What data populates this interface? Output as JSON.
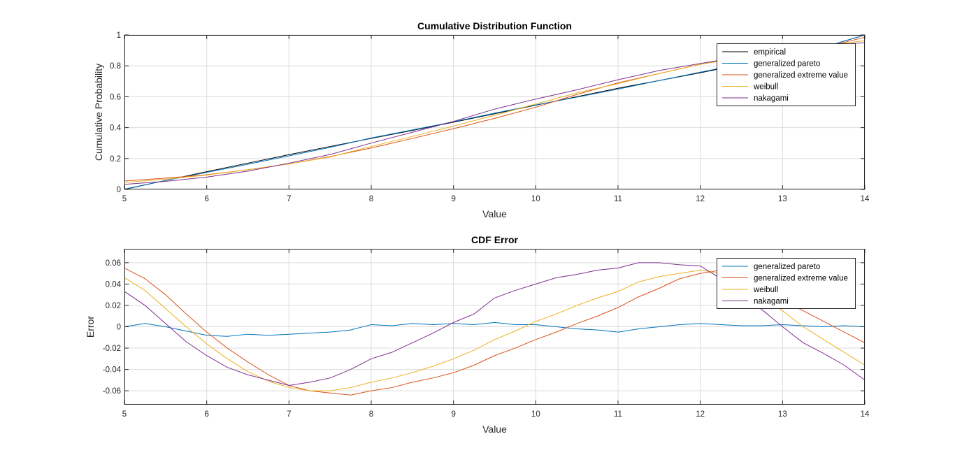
{
  "colors": {
    "empirical": "#000000",
    "generalized pareto": "#0072bd",
    "generalized extreme value": "#d95319",
    "weibull": "#edb120",
    "nakagami": "#7e2f8e"
  },
  "chart_data": [
    {
      "type": "line",
      "title": "Cumulative Distribution Function",
      "xlabel": "Value",
      "ylabel": "Cumulative Probability",
      "xlim": [
        5,
        14
      ],
      "ylim": [
        0,
        1
      ],
      "xticks": [
        5,
        6,
        7,
        8,
        9,
        10,
        11,
        12,
        13,
        14
      ],
      "xtick_labels": [
        "5",
        "6",
        "7",
        "8",
        "9",
        "10",
        "11",
        "12",
        "13",
        "14"
      ],
      "yticks": [
        0,
        0.2,
        0.4,
        0.6,
        0.8,
        1
      ],
      "ytick_labels": [
        "0",
        "0.2",
        "0.4",
        "0.6",
        "0.8",
        "1"
      ],
      "grid": true,
      "legend_position": "top-right",
      "x": [
        5,
        5.5,
        6,
        6.5,
        7,
        7.5,
        8,
        8.5,
        9,
        9.5,
        10,
        10.5,
        11,
        11.5,
        12,
        12.5,
        13,
        13.5,
        14
      ],
      "series": [
        {
          "name": "empirical",
          "values": [
            0.0,
            0.058,
            0.115,
            0.17,
            0.225,
            0.278,
            0.33,
            0.382,
            0.435,
            0.49,
            0.545,
            0.6,
            0.655,
            0.705,
            0.755,
            0.81,
            0.86,
            0.92,
            1.0
          ]
        },
        {
          "name": "generalized pareto",
          "values": [
            0.002,
            0.058,
            0.11,
            0.163,
            0.217,
            0.272,
            0.333,
            0.385,
            0.438,
            0.494,
            0.547,
            0.597,
            0.649,
            0.705,
            0.759,
            0.812,
            0.862,
            0.921,
            1.0
          ]
        },
        {
          "name": "generalized extreme value",
          "values": [
            0.055,
            0.073,
            0.095,
            0.127,
            0.165,
            0.213,
            0.268,
            0.33,
            0.393,
            0.46,
            0.532,
            0.615,
            0.69,
            0.75,
            0.81,
            0.855,
            0.89,
            0.92,
            0.985
          ]
        },
        {
          "name": "weibull",
          "values": [
            0.045,
            0.066,
            0.093,
            0.128,
            0.165,
            0.21,
            0.278,
            0.343,
            0.41,
            0.48,
            0.553,
            0.625,
            0.685,
            0.75,
            0.81,
            0.86,
            0.905,
            0.93,
            0.963
          ]
        },
        {
          "name": "nakagami",
          "values": [
            0.033,
            0.052,
            0.08,
            0.118,
            0.17,
            0.226,
            0.3,
            0.37,
            0.44,
            0.52,
            0.585,
            0.645,
            0.71,
            0.77,
            0.815,
            0.86,
            0.9,
            0.93,
            0.95
          ]
        }
      ]
    },
    {
      "type": "line",
      "title": "CDF Error",
      "xlabel": "Value",
      "ylabel": "Error",
      "xlim": [
        5,
        14
      ],
      "ylim": [
        -0.073,
        0.073
      ],
      "xticks": [
        5,
        6,
        7,
        8,
        9,
        10,
        11,
        12,
        13,
        14
      ],
      "xtick_labels": [
        "5",
        "6",
        "7",
        "8",
        "9",
        "10",
        "11",
        "12",
        "13",
        "14"
      ],
      "yticks": [
        -0.06,
        -0.04,
        -0.02,
        0,
        0.02,
        0.04,
        0.06
      ],
      "ytick_labels": [
        "-0.06",
        "-0.04",
        "-0.02",
        "0",
        "0.02",
        "0.04",
        "0.06"
      ],
      "grid": true,
      "legend_position": "top-right",
      "x": [
        5,
        5.25,
        5.5,
        5.75,
        6,
        6.25,
        6.5,
        6.75,
        7,
        7.25,
        7.5,
        7.75,
        8,
        8.25,
        8.5,
        8.75,
        9,
        9.25,
        9.5,
        9.75,
        10,
        10.25,
        10.5,
        10.75,
        11,
        11.25,
        11.5,
        11.75,
        12,
        12.25,
        12.5,
        12.75,
        13,
        13.25,
        13.5,
        13.75,
        14
      ],
      "series": [
        {
          "name": "generalized pareto",
          "values": [
            0.0,
            0.003,
            0.0,
            -0.004,
            -0.008,
            -0.009,
            -0.007,
            -0.008,
            -0.007,
            -0.006,
            -0.005,
            -0.003,
            0.002,
            0.001,
            0.003,
            0.002,
            0.003,
            0.002,
            0.004,
            0.002,
            0.002,
            0.0,
            -0.002,
            -0.003,
            -0.005,
            -0.002,
            0.0,
            0.002,
            0.003,
            0.002,
            0.001,
            0.001,
            0.002,
            0.001,
            0.0,
            0.001,
            0.0
          ]
        },
        {
          "name": "generalized extreme value",
          "values": [
            0.055,
            0.045,
            0.03,
            0.012,
            -0.005,
            -0.02,
            -0.033,
            -0.045,
            -0.055,
            -0.06,
            -0.062,
            -0.064,
            -0.06,
            -0.057,
            -0.052,
            -0.048,
            -0.043,
            -0.036,
            -0.027,
            -0.02,
            -0.012,
            -0.005,
            0.003,
            0.01,
            0.018,
            0.028,
            0.036,
            0.045,
            0.05,
            0.053,
            0.045,
            0.035,
            0.025,
            0.015,
            0.005,
            -0.005,
            -0.015
          ]
        },
        {
          "name": "weibull",
          "values": [
            0.046,
            0.034,
            0.017,
            0.0,
            -0.016,
            -0.03,
            -0.042,
            -0.051,
            -0.057,
            -0.06,
            -0.06,
            -0.057,
            -0.052,
            -0.048,
            -0.043,
            -0.037,
            -0.03,
            -0.022,
            -0.012,
            -0.004,
            0.005,
            0.012,
            0.02,
            0.027,
            0.033,
            0.042,
            0.047,
            0.05,
            0.053,
            0.05,
            0.04,
            0.028,
            0.015,
            0.0,
            -0.012,
            -0.024,
            -0.036
          ]
        },
        {
          "name": "nakagami",
          "values": [
            0.033,
            0.02,
            0.003,
            -0.014,
            -0.027,
            -0.038,
            -0.045,
            -0.05,
            -0.055,
            -0.052,
            -0.048,
            -0.04,
            -0.03,
            -0.024,
            -0.015,
            -0.006,
            0.004,
            0.012,
            0.027,
            0.034,
            0.04,
            0.046,
            0.049,
            0.053,
            0.055,
            0.06,
            0.06,
            0.058,
            0.057,
            0.045,
            0.03,
            0.016,
            0.0,
            -0.015,
            -0.025,
            -0.036,
            -0.05
          ]
        }
      ]
    }
  ]
}
